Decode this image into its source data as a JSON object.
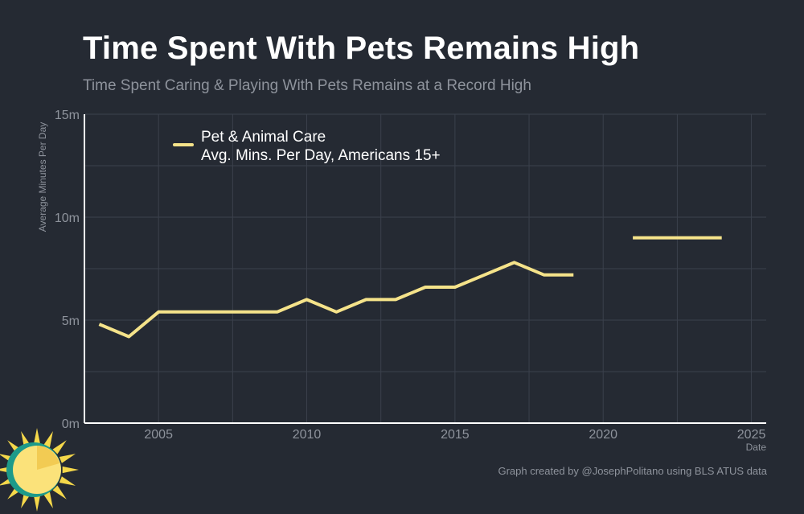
{
  "title": "Time Spent With Pets Remains High",
  "subtitle": "Time Spent Caring & Playing With Pets Remains at a Record High",
  "credit": "Graph created by @JosephPolitano using BLS ATUS data",
  "icons": {
    "logo": "sun-logo-icon"
  },
  "colors": {
    "background": "#252a33",
    "grid": "#3b414c",
    "axis": "#ffffff",
    "series": "#f5e38a",
    "muted_text": "#8e939c"
  },
  "chart_data": {
    "type": "line",
    "title": "Time Spent With Pets Remains High",
    "subtitle": "Time Spent Caring & Playing With Pets Remains at a Record High",
    "xlabel": "Date",
    "ylabel": "Average Minutes Per Day",
    "xlim": [
      2002.5,
      2025.5
    ],
    "ylim": [
      0,
      15
    ],
    "x_ticks": [
      2005,
      2010,
      2015,
      2020,
      2025
    ],
    "y_ticks": [
      0,
      5,
      10,
      15
    ],
    "y_tick_labels": [
      "0m",
      "5m",
      "10m",
      "15m"
    ],
    "grid": true,
    "legend_position": "top-left",
    "series": [
      {
        "name": "Pet & Animal Care",
        "name_line2": "Avg. Mins. Per Day, Americans 15+",
        "points": [
          [
            2003,
            4.8
          ],
          [
            2004,
            4.2
          ],
          [
            2005,
            5.4
          ],
          [
            2006,
            5.4
          ],
          [
            2007,
            5.4
          ],
          [
            2008,
            5.4
          ],
          [
            2009,
            5.4
          ],
          [
            2010,
            6.0
          ],
          [
            2011,
            5.4
          ],
          [
            2012,
            6.0
          ],
          [
            2013,
            6.0
          ],
          [
            2014,
            6.6
          ],
          [
            2015,
            6.6
          ],
          [
            2016,
            7.2
          ],
          [
            2017,
            7.8
          ],
          [
            2018,
            7.2
          ],
          [
            2019,
            7.2
          ],
          [
            2020,
            null
          ],
          [
            2021,
            9.0
          ],
          [
            2022,
            9.0
          ],
          [
            2023,
            9.0
          ],
          [
            2024,
            9.0
          ]
        ]
      }
    ]
  }
}
